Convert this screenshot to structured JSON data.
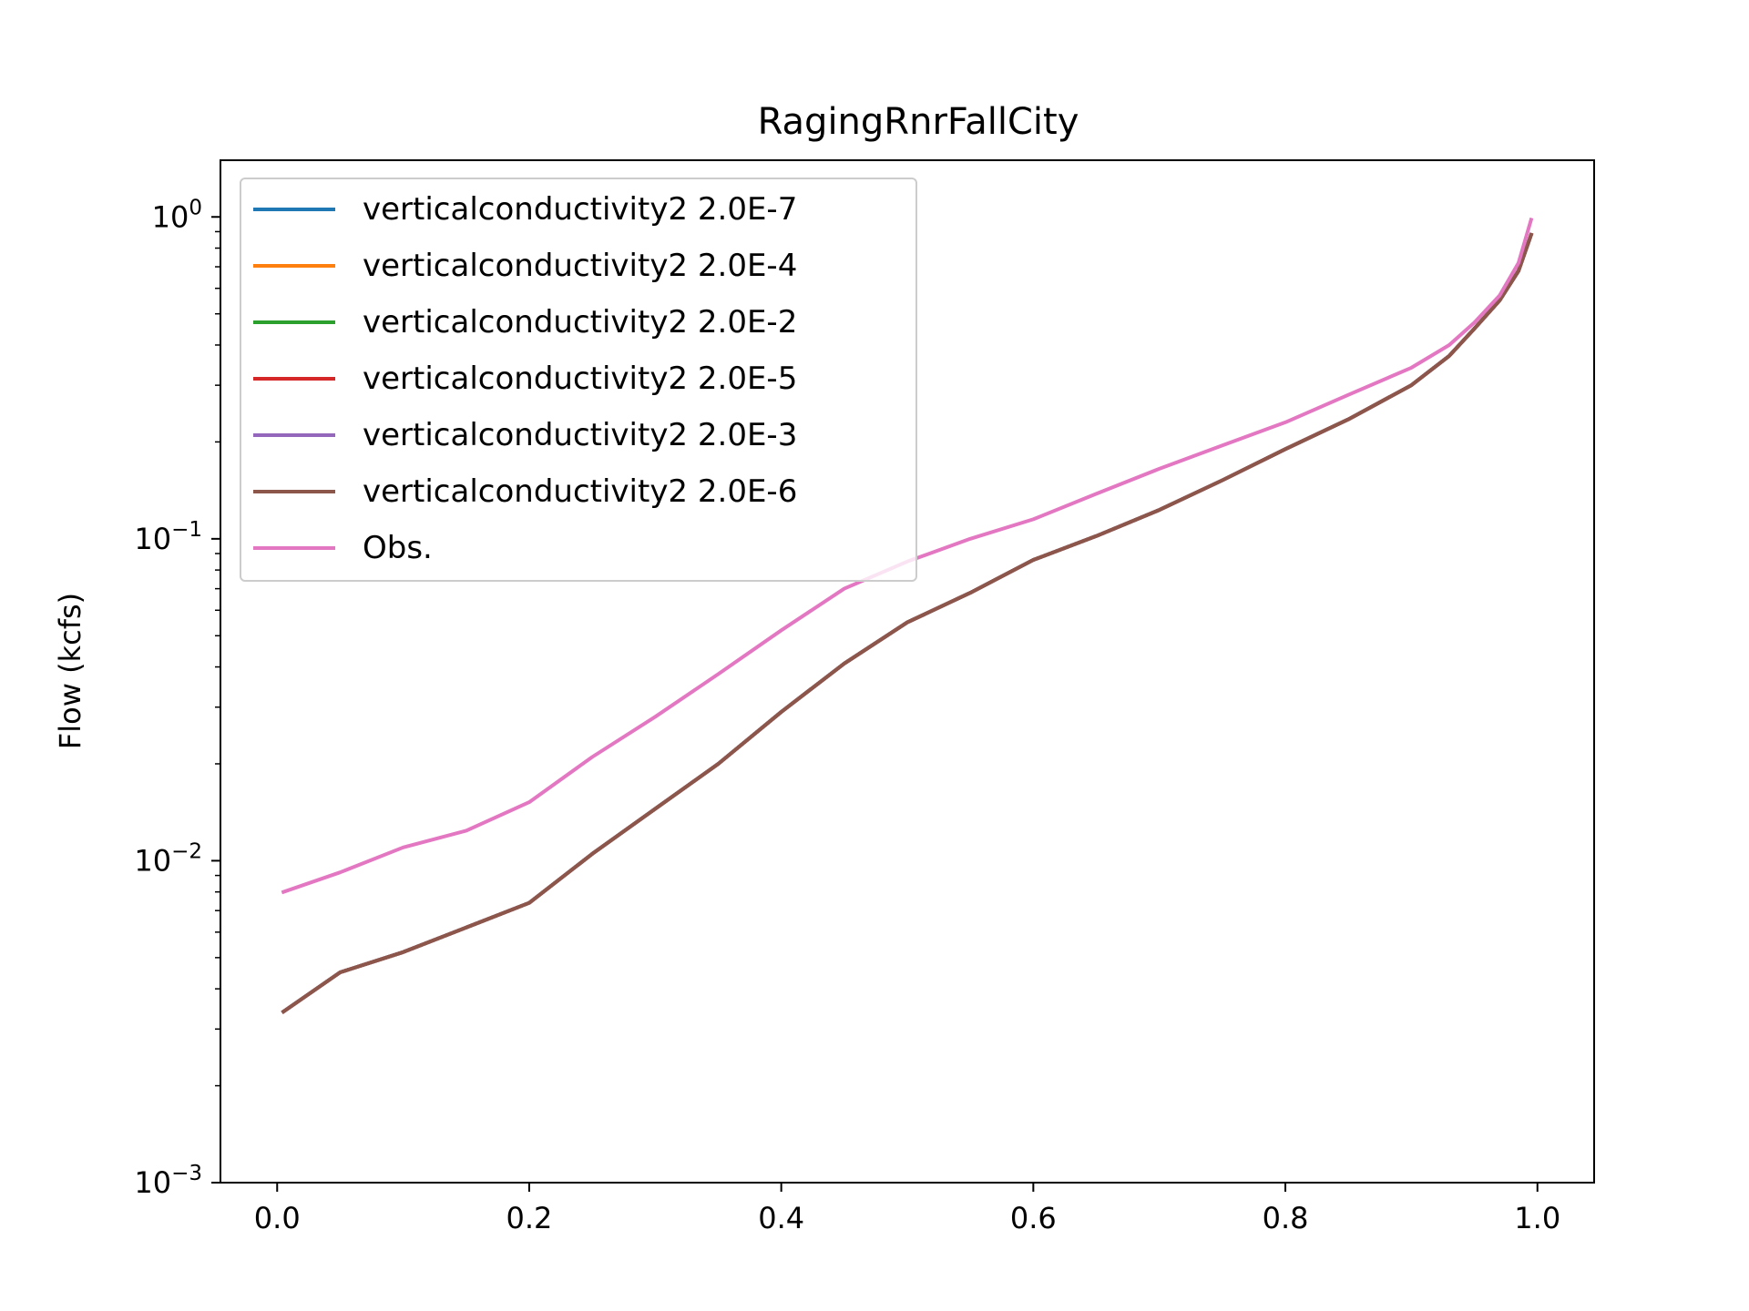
{
  "chart_data": {
    "type": "line",
    "title": "RagingRnrFallCity",
    "xlabel": "",
    "ylabel": "Flow (kcfs)",
    "xlim": [
      -0.045,
      1.045
    ],
    "ylim": [
      0.001,
      1.5
    ],
    "yscale": "log",
    "x_ticks": [
      {
        "value": 0.0,
        "label": "0.0"
      },
      {
        "value": 0.2,
        "label": "0.2"
      },
      {
        "value": 0.4,
        "label": "0.4"
      },
      {
        "value": 0.6,
        "label": "0.6"
      },
      {
        "value": 0.8,
        "label": "0.8"
      },
      {
        "value": 1.0,
        "label": "1.0"
      }
    ],
    "y_ticks": [
      {
        "value": 0.001,
        "base": "10",
        "exp": "−3"
      },
      {
        "value": 0.01,
        "base": "10",
        "exp": "−2"
      },
      {
        "value": 0.1,
        "base": "10",
        "exp": "−1"
      },
      {
        "value": 1,
        "base": "10",
        "exp": "0"
      }
    ],
    "grid": false,
    "legend_position": "top-left",
    "x": [
      0.005,
      0.05,
      0.1,
      0.15,
      0.2,
      0.25,
      0.3,
      0.35,
      0.4,
      0.45,
      0.5,
      0.55,
      0.6,
      0.65,
      0.7,
      0.75,
      0.8,
      0.85,
      0.9,
      0.93,
      0.95,
      0.97,
      0.985,
      0.995
    ],
    "series": [
      {
        "name": "verticalconductivity2 2.0E-7",
        "color": "#1f77b4",
        "values": [
          0.0034,
          0.0045,
          0.0052,
          0.0062,
          0.0074,
          0.0105,
          0.0145,
          0.02,
          0.029,
          0.041,
          0.055,
          0.068,
          0.086,
          0.102,
          0.123,
          0.152,
          0.19,
          0.235,
          0.3,
          0.37,
          0.45,
          0.55,
          0.68,
          0.88
        ]
      },
      {
        "name": "verticalconductivity2 2.0E-4",
        "color": "#ff7f0e",
        "values": [
          0.0034,
          0.0045,
          0.0052,
          0.0062,
          0.0074,
          0.0105,
          0.0145,
          0.02,
          0.029,
          0.041,
          0.055,
          0.068,
          0.086,
          0.102,
          0.123,
          0.152,
          0.19,
          0.235,
          0.3,
          0.37,
          0.45,
          0.55,
          0.68,
          0.88
        ]
      },
      {
        "name": "verticalconductivity2 2.0E-2",
        "color": "#2ca02c",
        "values": [
          0.0034,
          0.0045,
          0.0052,
          0.0062,
          0.0074,
          0.0105,
          0.0145,
          0.02,
          0.029,
          0.041,
          0.055,
          0.068,
          0.086,
          0.102,
          0.123,
          0.152,
          0.19,
          0.235,
          0.3,
          0.37,
          0.45,
          0.55,
          0.68,
          0.88
        ]
      },
      {
        "name": "verticalconductivity2 2.0E-5",
        "color": "#d62728",
        "values": [
          0.0034,
          0.0045,
          0.0052,
          0.0062,
          0.0074,
          0.0105,
          0.0145,
          0.02,
          0.029,
          0.041,
          0.055,
          0.068,
          0.086,
          0.102,
          0.123,
          0.152,
          0.19,
          0.235,
          0.3,
          0.37,
          0.45,
          0.55,
          0.68,
          0.88
        ]
      },
      {
        "name": "verticalconductivity2 2.0E-3",
        "color": "#9467bd",
        "values": [
          0.0034,
          0.0045,
          0.0052,
          0.0062,
          0.0074,
          0.0105,
          0.0145,
          0.02,
          0.029,
          0.041,
          0.055,
          0.068,
          0.086,
          0.102,
          0.123,
          0.152,
          0.19,
          0.235,
          0.3,
          0.37,
          0.45,
          0.55,
          0.68,
          0.88
        ]
      },
      {
        "name": "verticalconductivity2 2.0E-6",
        "color": "#8c564b",
        "values": [
          0.0034,
          0.0045,
          0.0052,
          0.0062,
          0.0074,
          0.0105,
          0.0145,
          0.02,
          0.029,
          0.041,
          0.055,
          0.068,
          0.086,
          0.102,
          0.123,
          0.152,
          0.19,
          0.235,
          0.3,
          0.37,
          0.45,
          0.55,
          0.68,
          0.88
        ]
      },
      {
        "name": "Obs.",
        "color": "#e377c2",
        "values": [
          0.008,
          0.0092,
          0.011,
          0.0124,
          0.0152,
          0.021,
          0.028,
          0.038,
          0.052,
          0.07,
          0.085,
          0.1,
          0.115,
          0.138,
          0.165,
          0.195,
          0.23,
          0.28,
          0.34,
          0.4,
          0.47,
          0.57,
          0.72,
          0.98
        ]
      }
    ]
  }
}
